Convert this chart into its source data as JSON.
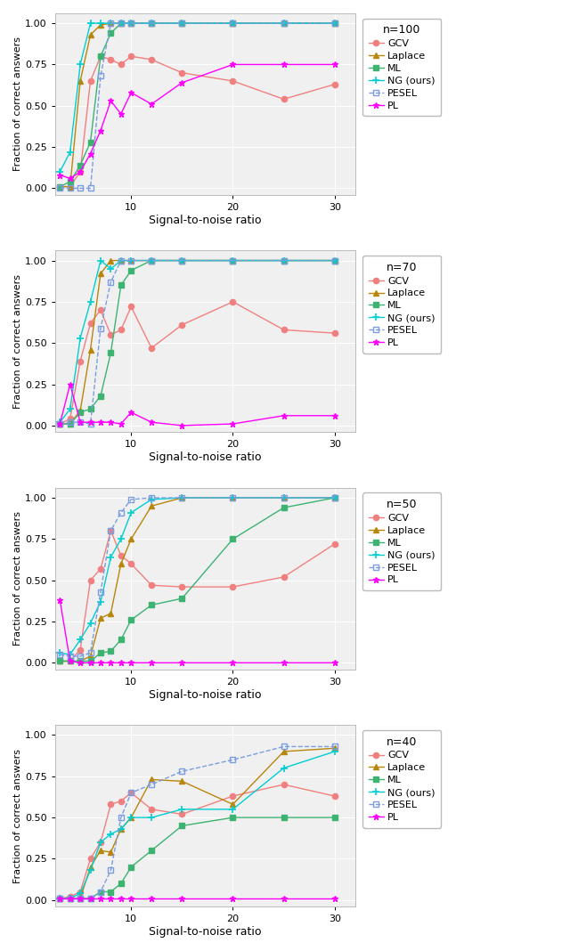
{
  "x_ticks": [
    3,
    4,
    5,
    6,
    7,
    8,
    9,
    10,
    12,
    15,
    20,
    25,
    30
  ],
  "panels": [
    {
      "title": "n=100",
      "GCV": [
        0.01,
        0.01,
        0.1,
        0.65,
        0.8,
        0.78,
        0.75,
        0.8,
        0.78,
        0.7,
        0.65,
        0.54,
        0.63
      ],
      "Laplace": [
        0.01,
        0.01,
        0.65,
        0.93,
        0.99,
        1.0,
        1.0,
        1.0,
        1.0,
        1.0,
        1.0,
        1.0,
        1.0
      ],
      "ML": [
        0.01,
        0.04,
        0.14,
        0.28,
        0.8,
        0.94,
        1.0,
        1.0,
        1.0,
        1.0,
        1.0,
        1.0,
        1.0
      ],
      "NG": [
        0.1,
        0.22,
        0.75,
        1.0,
        1.0,
        1.0,
        1.0,
        1.0,
        1.0,
        1.0,
        1.0,
        1.0,
        1.0
      ],
      "PESEL": [
        0.0,
        0.0,
        0.0,
        0.0,
        0.68,
        1.0,
        1.0,
        1.0,
        1.0,
        1.0,
        1.0,
        1.0,
        1.0
      ],
      "PL": [
        0.08,
        0.06,
        0.1,
        0.21,
        0.35,
        0.53,
        0.45,
        0.58,
        0.51,
        0.64,
        0.75,
        0.75,
        0.75
      ]
    },
    {
      "title": "n=70",
      "GCV": [
        0.01,
        0.04,
        0.39,
        0.62,
        0.7,
        0.55,
        0.58,
        0.72,
        0.47,
        0.61,
        0.75,
        0.58,
        0.56
      ],
      "Laplace": [
        0.01,
        0.01,
        0.09,
        0.46,
        0.92,
        1.0,
        1.0,
        1.0,
        1.0,
        1.0,
        1.0,
        1.0,
        1.0
      ],
      "ML": [
        0.01,
        0.01,
        0.08,
        0.1,
        0.18,
        0.44,
        0.85,
        0.94,
        1.0,
        1.0,
        1.0,
        1.0,
        1.0
      ],
      "NG": [
        0.02,
        0.1,
        0.53,
        0.75,
        1.0,
        0.95,
        1.0,
        1.0,
        1.0,
        1.0,
        1.0,
        1.0,
        1.0
      ],
      "PESEL": [
        0.01,
        0.02,
        0.02,
        0.01,
        0.59,
        0.87,
        1.0,
        1.0,
        1.0,
        1.0,
        1.0,
        1.0,
        1.0
      ],
      "PL": [
        0.01,
        0.25,
        0.02,
        0.02,
        0.02,
        0.02,
        0.01,
        0.08,
        0.02,
        0.0,
        0.01,
        0.06,
        0.06
      ]
    },
    {
      "title": "n=50",
      "GCV": [
        0.01,
        0.01,
        0.08,
        0.5,
        0.57,
        0.8,
        0.65,
        0.6,
        0.47,
        0.46,
        0.46,
        0.52,
        0.72
      ],
      "Laplace": [
        0.01,
        0.01,
        0.01,
        0.04,
        0.27,
        0.3,
        0.6,
        0.75,
        0.95,
        1.0,
        1.0,
        1.0,
        1.0
      ],
      "ML": [
        0.01,
        0.01,
        0.01,
        0.01,
        0.06,
        0.07,
        0.14,
        0.26,
        0.35,
        0.39,
        0.75,
        0.94,
        1.0
      ],
      "NG": [
        0.06,
        0.05,
        0.14,
        0.24,
        0.37,
        0.64,
        0.75,
        0.91,
        0.99,
        1.0,
        1.0,
        1.0,
        1.0
      ],
      "PESEL": [
        0.05,
        0.04,
        0.04,
        0.06,
        0.43,
        0.8,
        0.91,
        0.99,
        1.0,
        1.0,
        1.0,
        1.0,
        1.0
      ],
      "PL": [
        0.38,
        0.01,
        0.0,
        0.0,
        0.0,
        0.0,
        0.0,
        0.0,
        0.0,
        0.0,
        0.0,
        0.0,
        0.0
      ]
    },
    {
      "title": "n=40",
      "GCV": [
        0.01,
        0.02,
        0.05,
        0.25,
        0.35,
        0.58,
        0.6,
        0.65,
        0.55,
        0.52,
        0.63,
        0.7,
        0.63
      ],
      "Laplace": [
        0.01,
        0.01,
        0.01,
        0.2,
        0.3,
        0.29,
        0.43,
        0.5,
        0.73,
        0.72,
        0.58,
        0.9,
        0.92
      ],
      "ML": [
        0.01,
        0.01,
        0.01,
        0.01,
        0.05,
        0.05,
        0.1,
        0.2,
        0.3,
        0.45,
        0.5,
        0.5,
        0.5
      ],
      "NG": [
        0.01,
        0.01,
        0.04,
        0.18,
        0.35,
        0.4,
        0.43,
        0.5,
        0.5,
        0.55,
        0.55,
        0.8,
        0.9
      ],
      "PESEL": [
        0.01,
        0.01,
        0.01,
        0.01,
        0.05,
        0.18,
        0.5,
        0.65,
        0.7,
        0.78,
        0.85,
        0.93,
        0.93
      ],
      "PL": [
        0.01,
        0.01,
        0.01,
        0.01,
        0.01,
        0.01,
        0.01,
        0.01,
        0.01,
        0.01,
        0.01,
        0.01,
        0.01
      ]
    }
  ],
  "colors": {
    "GCV": "#f08080",
    "Laplace": "#b8860b",
    "ML": "#3cb371",
    "NG": "#00ced1",
    "PESEL": "#7b9de0",
    "PL": "#ff00ff"
  },
  "markers": {
    "GCV": "o",
    "Laplace": "^",
    "ML": "s",
    "NG": "+",
    "PESEL": "s",
    "PL": "*"
  },
  "series_names": [
    "GCV",
    "Laplace",
    "ML",
    "NG",
    "PESEL",
    "PL"
  ],
  "legend_labels": [
    "GCV",
    "Laplace",
    "ML",
    "NG (ours)",
    "PESEL",
    "PL"
  ],
  "xlabel": "Signal-to-noise ratio",
  "ylabel": "Fraction of correct answers",
  "panel_bg": "#f0f0f0",
  "grid_color": "#ffffff",
  "yticks": [
    0.0,
    0.25,
    0.5,
    0.75,
    1.0
  ],
  "ytick_labels": [
    "0.00",
    "0.25",
    "0.50",
    "0.75",
    "1.00"
  ],
  "xtick_display": [
    10,
    20,
    30
  ],
  "xlim": [
    2.5,
    32
  ],
  "ylim": [
    -0.04,
    1.06
  ]
}
